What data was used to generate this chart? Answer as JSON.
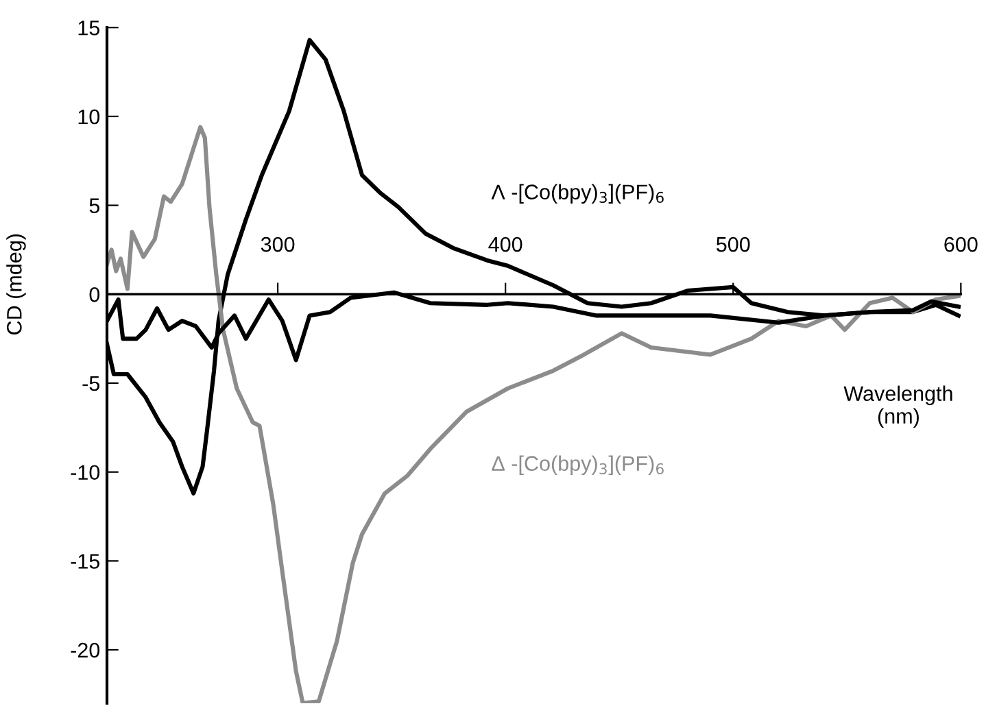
{
  "chart_data": {
    "type": "line",
    "ylabel": "CD (mdeg)",
    "xlabel": "Wavelength (nm)",
    "xlim": [
      225,
      600
    ],
    "xticks": [
      300,
      400,
      500,
      600
    ],
    "ylim": [
      -23,
      15
    ],
    "yticks": [
      15,
      10,
      5,
      0,
      -5,
      -10,
      -15,
      -20
    ],
    "grid": false,
    "legend": false,
    "marker": "none",
    "line_style": "solid",
    "series": [
      {
        "name": "Λ -[Co(bpy)$_{3}$](PF)$_{6}$",
        "color": "#000000",
        "x": [
          225,
          228,
          234,
          242,
          248,
          254,
          258,
          263,
          267,
          269,
          272,
          274,
          278,
          286,
          293,
          299,
          305,
          314,
          321,
          329,
          337,
          345,
          353,
          365,
          377,
          392,
          401,
          421,
          436,
          451,
          464,
          480,
          500,
          508,
          524,
          540,
          560,
          579,
          589,
          599
        ],
        "values": [
          -2.8,
          -4.5,
          -4.5,
          -5.8,
          -7.2,
          -8.3,
          -9.7,
          -11.2,
          -9.7,
          -7.6,
          -4.3,
          -1.5,
          1.1,
          4.2,
          6.7,
          8.5,
          10.3,
          14.3,
          13.2,
          10.3,
          6.7,
          5.7,
          4.9,
          3.4,
          2.6,
          1.9,
          1.6,
          0.5,
          -0.5,
          -0.7,
          -0.5,
          0.2,
          0.4,
          -0.5,
          -1.0,
          -1.2,
          -1.0,
          -1.0,
          -0.6,
          -1.2
        ]
      },
      {
        "name": "Δ -[Co(bpy)$_{3}$](PF)$_{6}$",
        "color": "#8c8c8c",
        "x": [
          225,
          227,
          229,
          231,
          234,
          236,
          241,
          246,
          250,
          253,
          258,
          262,
          266,
          268,
          270,
          273,
          276,
          282,
          289,
          292,
          298,
          302,
          308,
          311,
          318,
          326,
          333,
          337,
          347,
          357,
          367,
          383,
          401,
          421,
          433,
          451,
          464,
          490,
          508,
          520,
          532,
          543,
          549,
          560,
          570,
          579,
          589,
          599
        ],
        "values": [
          1.7,
          2.5,
          1.3,
          2.0,
          0.3,
          3.5,
          2.1,
          3.1,
          5.5,
          5.2,
          6.2,
          7.8,
          9.4,
          8.8,
          4.9,
          1.1,
          -2.0,
          -5.3,
          -7.2,
          -7.4,
          -11.8,
          -15.6,
          -21.2,
          -23,
          -22.9,
          -19.5,
          -15.1,
          -13.5,
          -11.2,
          -10.2,
          -8.7,
          -6.6,
          -5.3,
          -4.3,
          -3.5,
          -2.2,
          -3.0,
          -3.4,
          -2.5,
          -1.5,
          -1.8,
          -1.2,
          -2.0,
          -0.5,
          -0.2,
          -1.0,
          -0.3,
          -0.1
        ]
      },
      {
        "color": "#000000",
        "x": [
          225,
          230,
          232,
          238,
          242,
          247,
          252,
          258,
          264,
          271,
          274,
          281,
          286,
          296,
          302,
          308,
          314,
          323,
          332,
          351,
          367,
          392,
          401,
          421,
          440,
          470,
          490,
          520,
          540,
          560,
          579,
          587,
          599
        ],
        "values": [
          -1.5,
          -0.3,
          -2.5,
          -2.5,
          -2.0,
          -0.8,
          -2.0,
          -1.5,
          -1.8,
          -3.0,
          -2.2,
          -1.2,
          -2.5,
          -0.3,
          -1.5,
          -3.7,
          -1.2,
          -1.0,
          -0.2,
          0.1,
          -0.5,
          -0.6,
          -0.5,
          -0.7,
          -1.2,
          -1.2,
          -1.2,
          -1.6,
          -1.2,
          -1.0,
          -0.9,
          -0.4,
          -0.7
        ]
      }
    ]
  }
}
